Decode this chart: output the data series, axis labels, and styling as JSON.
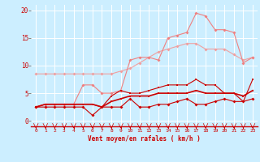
{
  "x": [
    0,
    1,
    2,
    3,
    4,
    5,
    6,
    7,
    8,
    9,
    10,
    11,
    12,
    13,
    14,
    15,
    16,
    17,
    18,
    19,
    20,
    21,
    22,
    23
  ],
  "line1": [
    8.5,
    8.5,
    8.5,
    8.5,
    8.5,
    8.5,
    8.5,
    8.5,
    8.5,
    9.0,
    9.5,
    10.5,
    11.5,
    12.5,
    13.0,
    13.5,
    14.0,
    14.0,
    13.0,
    13.0,
    13.0,
    12.0,
    11.0,
    11.5
  ],
  "line2": [
    2.5,
    3.0,
    3.0,
    3.0,
    3.0,
    6.5,
    6.5,
    5.0,
    5.0,
    5.5,
    11.0,
    11.5,
    11.5,
    11.0,
    15.0,
    15.5,
    16.0,
    19.5,
    19.0,
    16.5,
    16.5,
    16.0,
    10.5,
    11.5
  ],
  "line3": [
    2.5,
    3.0,
    3.0,
    3.0,
    3.0,
    3.0,
    3.0,
    2.5,
    4.5,
    5.5,
    5.0,
    5.0,
    5.5,
    6.0,
    6.5,
    6.5,
    6.5,
    7.5,
    6.5,
    6.5,
    5.0,
    5.0,
    3.5,
    7.5
  ],
  "line4": [
    2.5,
    3.0,
    3.0,
    3.0,
    3.0,
    3.0,
    3.0,
    2.5,
    3.5,
    4.0,
    4.5,
    4.5,
    4.5,
    5.0,
    5.0,
    5.0,
    5.0,
    5.5,
    5.0,
    5.0,
    5.0,
    5.0,
    4.5,
    5.5
  ],
  "line5": [
    2.5,
    2.5,
    2.5,
    2.5,
    2.5,
    2.5,
    1.0,
    2.5,
    2.5,
    2.5,
    4.0,
    2.5,
    2.5,
    3.0,
    3.0,
    3.5,
    4.0,
    3.0,
    3.0,
    3.5,
    4.0,
    3.5,
    3.5,
    4.0
  ],
  "color_light1": "#f0a0a0",
  "color_light2": "#f08080",
  "color_dark": "#cc0000",
  "background": "#cceeff",
  "grid_color": "#ffffff",
  "xlabel": "Vent moyen/en rafales ( km/h )",
  "xlabel_color": "#cc0000",
  "tick_color": "#cc0000",
  "ylim": [
    -1,
    21
  ],
  "yticks": [
    0,
    5,
    10,
    15,
    20
  ],
  "xlim": [
    -0.5,
    23.5
  ]
}
